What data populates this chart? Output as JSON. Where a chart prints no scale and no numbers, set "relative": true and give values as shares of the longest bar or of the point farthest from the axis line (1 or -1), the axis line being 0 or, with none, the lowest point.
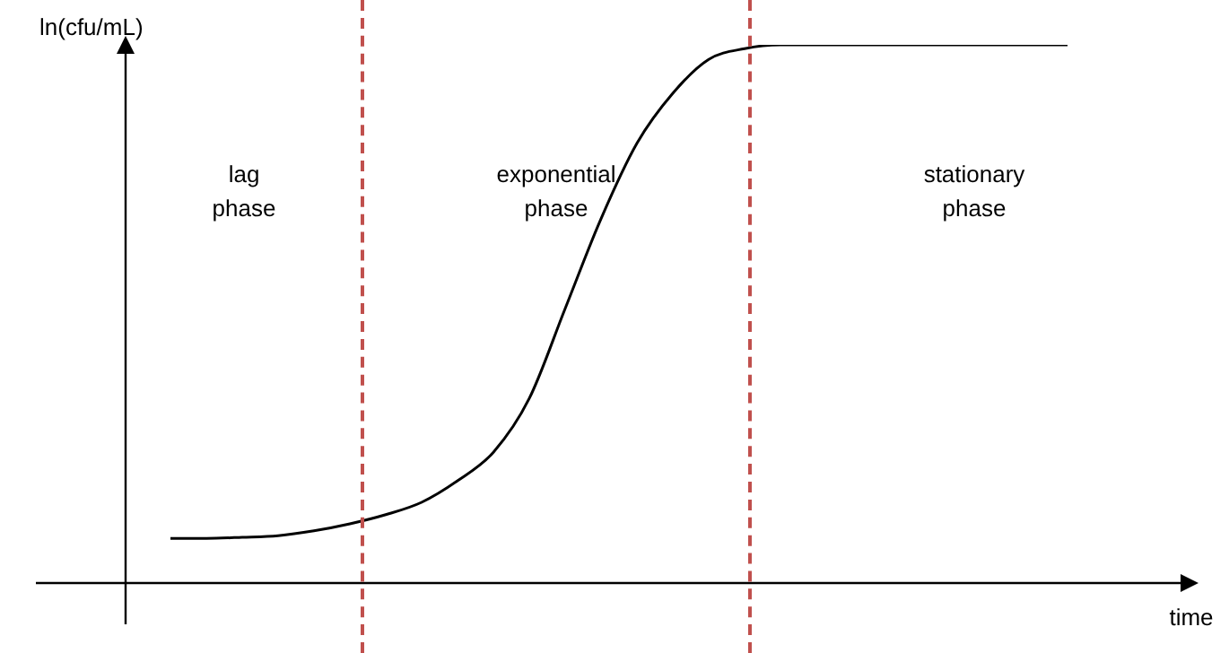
{
  "chart_data": {
    "type": "line",
    "relative": true,
    "ylabel": "ln(cfu/mL)",
    "xlabel": "time",
    "marker": "none",
    "legend": false,
    "categories": [
      null,
      null,
      null,
      null,
      null,
      null,
      null,
      null,
      null,
      null,
      null,
      null,
      null,
      null,
      null,
      null,
      null,
      null,
      null,
      null,
      null,
      null,
      null,
      null,
      null,
      null
    ],
    "series": [
      {
        "color": "#000000",
        "values": [
          0.083,
          0.083,
          0.085,
          0.088,
          0.097,
          0.11,
          0.127,
          0.15,
          0.19,
          0.243,
          0.343,
          0.51,
          0.677,
          0.817,
          0.91,
          0.973,
          0.993,
          1,
          1,
          1,
          1,
          1,
          1,
          1,
          1,
          1
        ]
      }
    ],
    "annotations": [
      "lag phase",
      "exponential phase",
      "stationary phase"
    ]
  }
}
